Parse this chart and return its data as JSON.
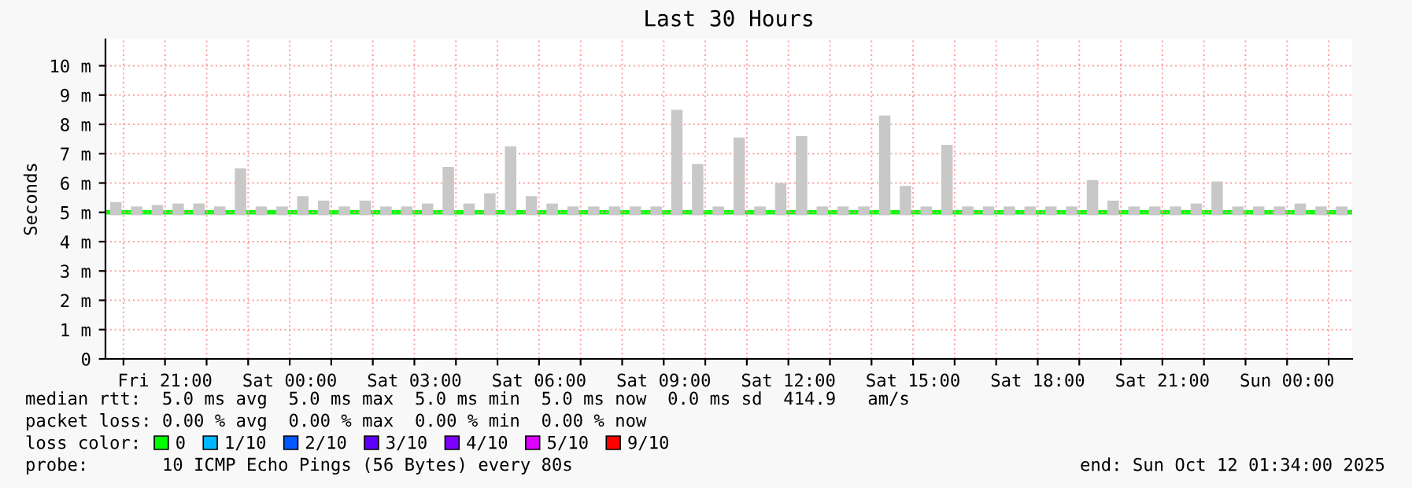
{
  "chart_data": {
    "type": "bar",
    "title": "Last 30 Hours",
    "ylabel": "Seconds",
    "legend_title": "loss color:",
    "legend": "bottom",
    "grid": true,
    "x": [
      "2025-10-10T19:49",
      "2025-10-10T20:19",
      "2025-10-10T20:49",
      "2025-10-10T21:19",
      "2025-10-10T21:49",
      "2025-10-10T22:19",
      "2025-10-10T22:49",
      "2025-10-10T23:19",
      "2025-10-10T23:49",
      "2025-10-11T00:19",
      "2025-10-11T00:49",
      "2025-10-11T01:19",
      "2025-10-11T01:49",
      "2025-10-11T02:19",
      "2025-10-11T02:49",
      "2025-10-11T03:19",
      "2025-10-11T03:49",
      "2025-10-11T04:19",
      "2025-10-11T04:49",
      "2025-10-11T05:19",
      "2025-10-11T05:49",
      "2025-10-11T06:19",
      "2025-10-11T06:49",
      "2025-10-11T07:19",
      "2025-10-11T07:49",
      "2025-10-11T08:19",
      "2025-10-11T08:49",
      "2025-10-11T09:19",
      "2025-10-11T09:49",
      "2025-10-11T10:19",
      "2025-10-11T10:49",
      "2025-10-11T11:19",
      "2025-10-11T11:49",
      "2025-10-11T12:19",
      "2025-10-11T12:49",
      "2025-10-11T13:19",
      "2025-10-11T13:49",
      "2025-10-11T14:19",
      "2025-10-11T14:49",
      "2025-10-11T15:19",
      "2025-10-11T15:49",
      "2025-10-11T16:19",
      "2025-10-11T16:49",
      "2025-10-11T17:19",
      "2025-10-11T17:49",
      "2025-10-11T18:19",
      "2025-10-11T18:49",
      "2025-10-11T19:19",
      "2025-10-11T19:49",
      "2025-10-11T20:19",
      "2025-10-11T20:49",
      "2025-10-11T21:19",
      "2025-10-11T21:49",
      "2025-10-11T22:19",
      "2025-10-11T22:49",
      "2025-10-11T23:19",
      "2025-10-11T23:49",
      "2025-10-12T00:19",
      "2025-10-12T00:49",
      "2025-10-12T01:19"
    ],
    "series": [
      {
        "color": "#c8c8c8",
        "base": [
          4.9,
          4.9,
          4.9,
          4.9,
          4.9,
          4.9,
          4.9,
          4.9,
          4.9,
          4.9,
          4.9,
          4.9,
          4.9,
          4.9,
          4.9,
          4.9,
          4.9,
          4.9,
          4.9,
          4.9,
          4.9,
          4.9,
          4.9,
          4.9,
          4.9,
          4.9,
          4.9,
          4.9,
          4.9,
          4.9,
          4.9,
          4.9,
          4.9,
          4.9,
          4.9,
          4.9,
          4.9,
          4.9,
          4.9,
          4.9,
          4.9,
          4.9,
          4.9,
          4.9,
          4.9,
          4.9,
          4.9,
          4.9,
          4.9,
          4.9,
          4.9,
          4.9,
          4.9,
          4.9,
          4.9,
          4.9,
          4.9,
          4.9,
          4.9,
          4.9
        ],
        "values": [
          0.45,
          0.3,
          0.35,
          0.4,
          0.4,
          0.3,
          1.6,
          0.3,
          0.3,
          0.65,
          0.5,
          0.3,
          0.5,
          0.3,
          0.3,
          0.4,
          1.65,
          0.4,
          0.75,
          2.35,
          0.65,
          0.4,
          0.3,
          0.3,
          0.3,
          0.3,
          0.3,
          3.6,
          1.75,
          0.3,
          2.65,
          0.3,
          1.1,
          2.7,
          0.3,
          0.3,
          0.3,
          3.4,
          1.0,
          0.3,
          2.4,
          0.3,
          0.3,
          0.3,
          0.3,
          0.3,
          0.3,
          1.2,
          0.5,
          0.3,
          0.3,
          0.3,
          0.4,
          1.15,
          0.3,
          0.3,
          0.3,
          0.4,
          0.3,
          0.3
        ]
      },
      {
        "type": "line",
        "name": "0",
        "color": "#00ff00",
        "x": [
          "2025-10-10T19:34",
          "2025-10-12T01:34"
        ],
        "values": [
          5,
          5
        ]
      },
      {
        "type": "line",
        "name": "1/10",
        "color": "#00b8ff",
        "values": [
          null,
          null,
          null,
          null,
          null,
          null,
          null,
          null,
          null,
          null,
          null,
          null,
          null,
          null,
          null,
          null,
          null,
          null,
          null,
          null,
          null,
          null,
          null,
          null,
          null,
          null,
          null,
          null,
          null,
          null,
          null,
          null,
          null,
          null,
          null,
          null,
          null,
          null,
          null,
          null,
          null,
          null,
          null,
          null,
          null,
          null,
          null,
          null,
          null,
          null,
          null,
          null,
          null,
          null,
          null,
          null,
          null,
          null,
          null,
          null
        ]
      },
      {
        "type": "line",
        "name": "2/10",
        "color": "#0059ff",
        "values": [
          null,
          null,
          null,
          null,
          null,
          null,
          null,
          null,
          null,
          null,
          null,
          null,
          null,
          null,
          null,
          null,
          null,
          null,
          null,
          null,
          null,
          null,
          null,
          null,
          null,
          null,
          null,
          null,
          null,
          null,
          null,
          null,
          null,
          null,
          null,
          null,
          null,
          null,
          null,
          null,
          null,
          null,
          null,
          null,
          null,
          null,
          null,
          null,
          null,
          null,
          null,
          null,
          null,
          null,
          null,
          null,
          null,
          null,
          null,
          null
        ]
      },
      {
        "type": "line",
        "name": "3/10",
        "color": "#5e00ff",
        "values": [
          null,
          null,
          null,
          null,
          null,
          null,
          null,
          null,
          null,
          null,
          null,
          null,
          null,
          null,
          null,
          null,
          null,
          null,
          null,
          null,
          null,
          null,
          null,
          null,
          null,
          null,
          null,
          null,
          null,
          null,
          null,
          null,
          null,
          null,
          null,
          null,
          null,
          null,
          null,
          null,
          null,
          null,
          null,
          null,
          null,
          null,
          null,
          null,
          null,
          null,
          null,
          null,
          null,
          null,
          null,
          null,
          null,
          null,
          null,
          null
        ]
      },
      {
        "type": "line",
        "name": "4/10",
        "color": "#7e00ff",
        "values": [
          null,
          null,
          null,
          null,
          null,
          null,
          null,
          null,
          null,
          null,
          null,
          null,
          null,
          null,
          null,
          null,
          null,
          null,
          null,
          null,
          null,
          null,
          null,
          null,
          null,
          null,
          null,
          null,
          null,
          null,
          null,
          null,
          null,
          null,
          null,
          null,
          null,
          null,
          null,
          null,
          null,
          null,
          null,
          null,
          null,
          null,
          null,
          null,
          null,
          null,
          null,
          null,
          null,
          null,
          null,
          null,
          null,
          null,
          null,
          null
        ]
      },
      {
        "type": "line",
        "name": "5/10",
        "color": "#dd00ff",
        "values": [
          null,
          null,
          null,
          null,
          null,
          null,
          null,
          null,
          null,
          null,
          null,
          null,
          null,
          null,
          null,
          null,
          null,
          null,
          null,
          null,
          null,
          null,
          null,
          null,
          null,
          null,
          null,
          null,
          null,
          null,
          null,
          null,
          null,
          null,
          null,
          null,
          null,
          null,
          null,
          null,
          null,
          null,
          null,
          null,
          null,
          null,
          null,
          null,
          null,
          null,
          null,
          null,
          null,
          null,
          null,
          null,
          null,
          null,
          null,
          null
        ]
      },
      {
        "type": "line",
        "name": "9/10",
        "color": "#ff0000",
        "values": [
          null,
          null,
          null,
          null,
          null,
          null,
          null,
          null,
          null,
          null,
          null,
          null,
          null,
          null,
          null,
          null,
          null,
          null,
          null,
          null,
          null,
          null,
          null,
          null,
          null,
          null,
          null,
          null,
          null,
          null,
          null,
          null,
          null,
          null,
          null,
          null,
          null,
          null,
          null,
          null,
          null,
          null,
          null,
          null,
          null,
          null,
          null,
          null,
          null,
          null,
          null,
          null,
          null,
          null,
          null,
          null,
          null,
          null,
          null,
          null
        ]
      }
    ],
    "xlim": [
      "2025-10-10T19:34",
      "2025-10-12T01:34"
    ],
    "xticks": [
      {
        "value": "2025-10-10T20:00",
        "label": null
      },
      {
        "value": "2025-10-10T21:00",
        "label": "Fri 21:00"
      },
      {
        "value": "2025-10-10T22:00",
        "label": null
      },
      {
        "value": "2025-10-10T23:00",
        "label": null
      },
      {
        "value": "2025-10-11T00:00",
        "label": "Sat 00:00"
      },
      {
        "value": "2025-10-11T01:00",
        "label": null
      },
      {
        "value": "2025-10-11T02:00",
        "label": null
      },
      {
        "value": "2025-10-11T03:00",
        "label": "Sat 03:00"
      },
      {
        "value": "2025-10-11T04:00",
        "label": null
      },
      {
        "value": "2025-10-11T05:00",
        "label": null
      },
      {
        "value": "2025-10-11T06:00",
        "label": "Sat 06:00"
      },
      {
        "value": "2025-10-11T07:00",
        "label": null
      },
      {
        "value": "2025-10-11T08:00",
        "label": null
      },
      {
        "value": "2025-10-11T09:00",
        "label": "Sat 09:00"
      },
      {
        "value": "2025-10-11T10:00",
        "label": null
      },
      {
        "value": "2025-10-11T11:00",
        "label": null
      },
      {
        "value": "2025-10-11T12:00",
        "label": "Sat 12:00"
      },
      {
        "value": "2025-10-11T13:00",
        "label": null
      },
      {
        "value": "2025-10-11T14:00",
        "label": null
      },
      {
        "value": "2025-10-11T15:00",
        "label": "Sat 15:00"
      },
      {
        "value": "2025-10-11T16:00",
        "label": null
      },
      {
        "value": "2025-10-11T17:00",
        "label": null
      },
      {
        "value": "2025-10-11T18:00",
        "label": "Sat 18:00"
      },
      {
        "value": "2025-10-11T19:00",
        "label": null
      },
      {
        "value": "2025-10-11T20:00",
        "label": null
      },
      {
        "value": "2025-10-11T21:00",
        "label": "Sat 21:00"
      },
      {
        "value": "2025-10-11T22:00",
        "label": null
      },
      {
        "value": "2025-10-11T23:00",
        "label": null
      },
      {
        "value": "2025-10-12T00:00",
        "label": "Sun 00:00"
      },
      {
        "value": "2025-10-12T01:00",
        "label": null
      }
    ],
    "ylim": [
      0,
      10.9
    ],
    "yticks": [
      0,
      {
        "value": 1,
        "label": "1 m"
      },
      {
        "value": 2,
        "label": "2 m"
      },
      {
        "value": 3,
        "label": "3 m"
      },
      {
        "value": 4,
        "label": "4 m"
      },
      {
        "value": 5,
        "label": "5 m"
      },
      {
        "value": 6,
        "label": "6 m"
      },
      {
        "value": 7,
        "label": "7 m"
      },
      {
        "value": 8,
        "label": "8 m"
      },
      {
        "value": 9,
        "label": "9 m"
      },
      {
        "value": 10,
        "label": "10 m"
      }
    ],
    "annotations": [
      "median rtt:  5.0 ms avg  5.0 ms max  5.0 ms min  5.0 ms now  0.0 ms sd  414.9   am/s",
      "packet loss: 0.00 % avg  0.00 % max  0.00 % min  0.00 % now",
      "probe:       10 ICMP Echo Pings (56 Bytes) every 80s",
      "end: Sun Oct 12 01:34:00 2025"
    ]
  }
}
